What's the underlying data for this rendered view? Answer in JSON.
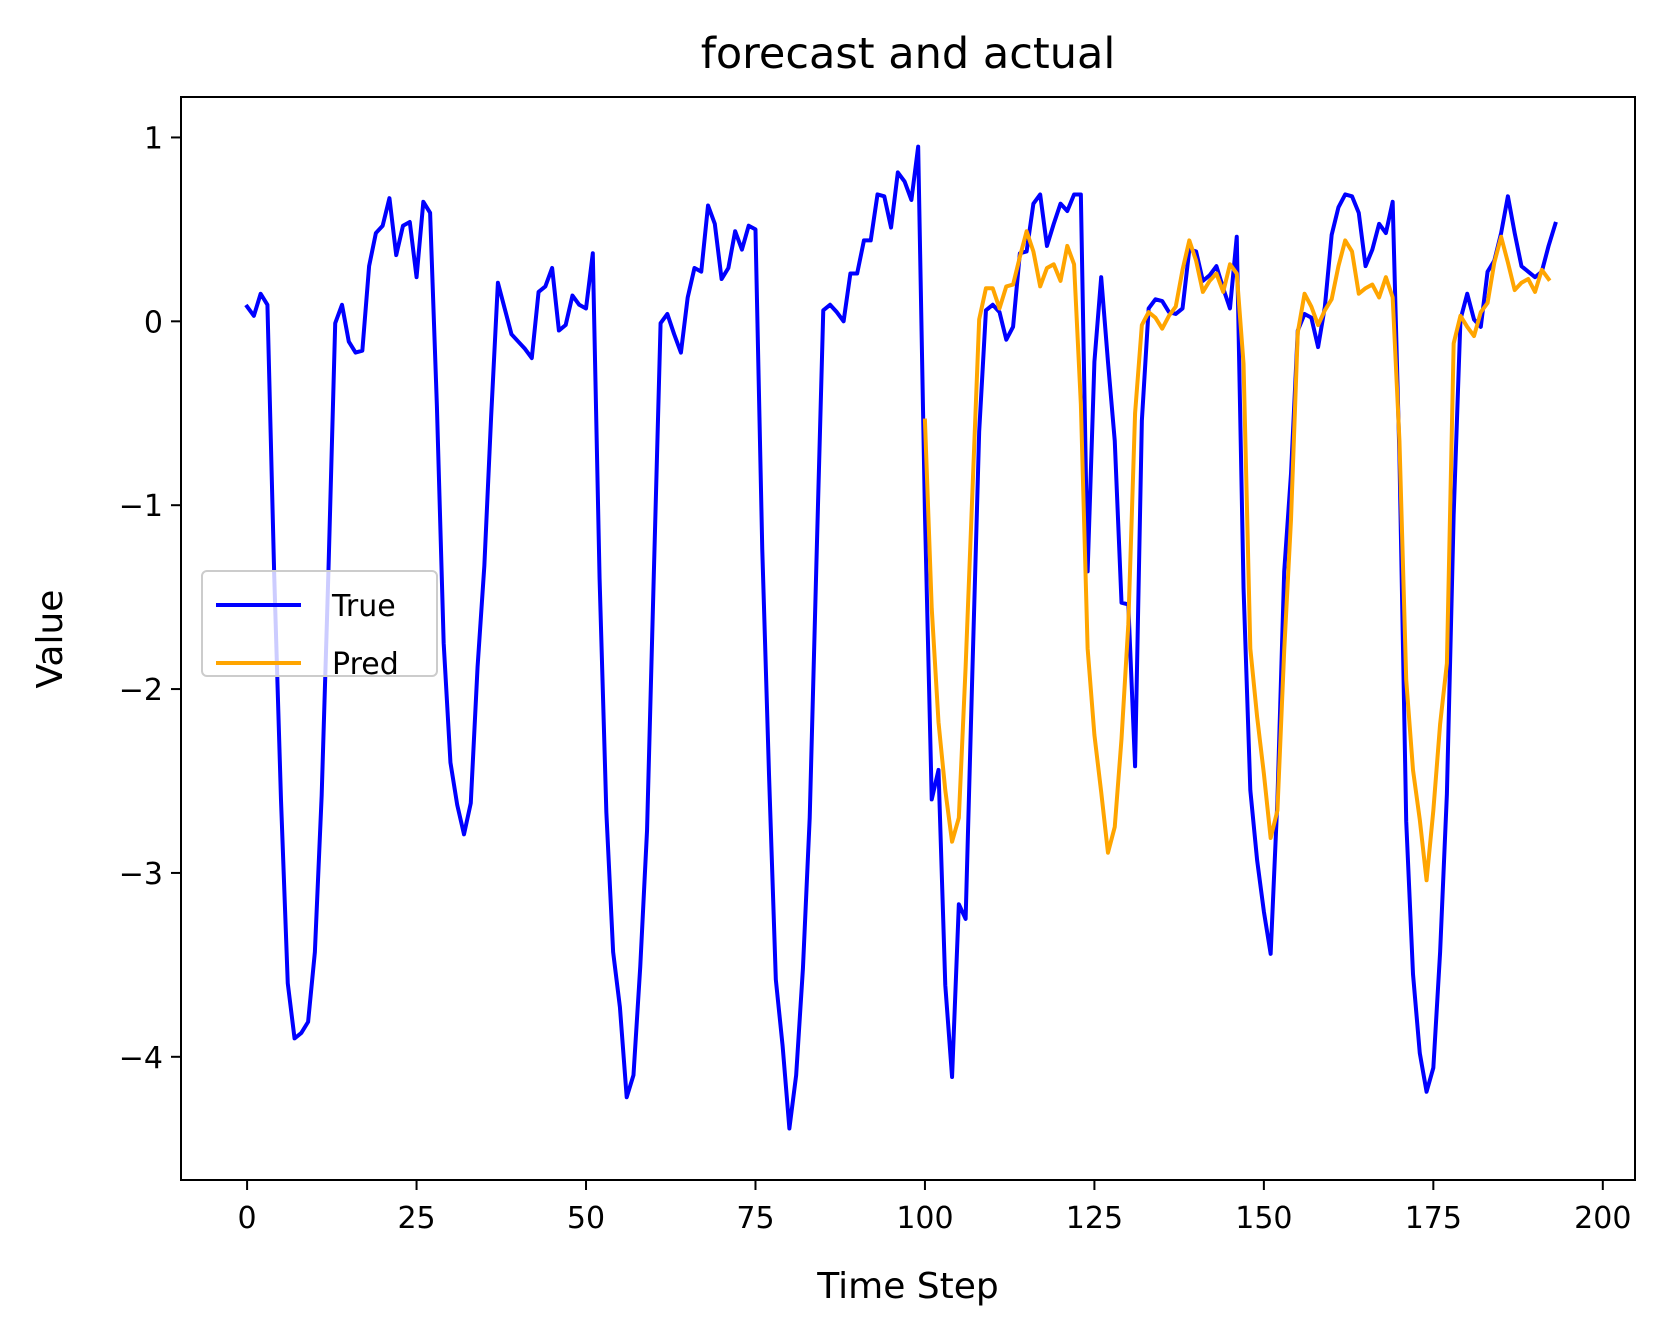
{
  "chart_data": {
    "type": "line",
    "title": "forecast and actual",
    "xlabel": "Time Step",
    "ylabel": "Value",
    "xlim": [
      -9.75,
      204.75
    ],
    "ylim": [
      -4.67,
      1.22
    ],
    "xticks": [
      0,
      25,
      50,
      75,
      100,
      125,
      150,
      175,
      200
    ],
    "xtick_labels": [
      "0",
      "25",
      "50",
      "75",
      "100",
      "125",
      "150",
      "175",
      "200"
    ],
    "yticks": [
      1,
      0,
      -1,
      -2,
      -3,
      -4
    ],
    "ytick_labels": [
      "1",
      "0",
      "−1",
      "−2",
      "−3",
      "−4"
    ],
    "grid": false,
    "legend_position": "center-left",
    "series": [
      {
        "name": "True",
        "color": "#0000ff",
        "x_start": 0,
        "values": [
          0.08,
          0.03,
          0.15,
          0.09,
          -1.38,
          -2.6,
          -3.6,
          -3.9,
          -3.87,
          -3.81,
          -3.43,
          -2.58,
          -1.36,
          -0.01,
          0.09,
          -0.11,
          -0.17,
          -0.16,
          0.3,
          0.48,
          0.52,
          0.67,
          0.36,
          0.52,
          0.54,
          0.24,
          0.65,
          0.59,
          -0.46,
          -1.75,
          -2.4,
          -2.63,
          -2.79,
          -2.62,
          -1.88,
          -1.33,
          -0.52,
          0.21,
          0.07,
          -0.07,
          -0.11,
          -0.15,
          -0.2,
          0.16,
          0.19,
          0.29,
          -0.05,
          -0.02,
          0.14,
          0.09,
          0.07,
          0.37,
          -1.4,
          -2.67,
          -3.43,
          -3.73,
          -4.22,
          -4.1,
          -3.51,
          -2.77,
          -1.38,
          -0.01,
          0.04,
          -0.07,
          -0.17,
          0.13,
          0.29,
          0.27,
          0.63,
          0.53,
          0.23,
          0.29,
          0.49,
          0.39,
          0.52,
          0.5,
          -1.24,
          -2.47,
          -3.58,
          -3.94,
          -4.39,
          -4.1,
          -3.52,
          -2.7,
          -1.3,
          0.06,
          0.09,
          0.05,
          0,
          0.26,
          0.26,
          0.44,
          0.44,
          0.69,
          0.68,
          0.51,
          0.81,
          0.76,
          0.66,
          0.95,
          -1.05,
          -2.6,
          -2.44,
          -3.61,
          -4.11,
          -3.17,
          -3.25,
          -1.9,
          -0.6,
          0.06,
          0.09,
          0.05,
          -0.1,
          -0.03,
          0.37,
          0.38,
          0.64,
          0.69,
          0.41,
          0.53,
          0.64,
          0.6,
          0.69,
          0.69,
          -1.36,
          -0.22,
          0.24,
          -0.22,
          -0.65,
          -1.53,
          -1.54,
          -2.42,
          -0.54,
          0.07,
          0.12,
          0.11,
          0.05,
          0.04,
          0.07,
          0.39,
          0.38,
          0.22,
          0.25,
          0.3,
          0.18,
          0.07,
          0.46,
          -1.45,
          -2.55,
          -2.93,
          -3.21,
          -3.44,
          -2.6,
          -1.36,
          -0.83,
          -0.05,
          0.04,
          0.02,
          -0.14,
          0.08,
          0.47,
          0.62,
          0.69,
          0.68,
          0.59,
          0.3,
          0.39,
          0.53,
          0.48,
          0.65,
          -0.74,
          -2.72,
          -3.55,
          -3.98,
          -4.19,
          -4.06,
          -3.43,
          -2.57,
          -1.05,
          0.01,
          0.15,
          0.01,
          -0.03,
          0.27,
          0.33,
          0.48,
          0.68,
          0.48,
          0.3,
          0.27,
          0.24,
          0.27,
          0.41,
          0.53
        ]
      },
      {
        "name": "Pred",
        "color": "#ffa500",
        "x_start": 100,
        "values": [
          -0.54,
          -1.56,
          -2.18,
          -2.55,
          -2.83,
          -2.7,
          -1.88,
          -0.93,
          0.01,
          0.18,
          0.18,
          0.07,
          0.19,
          0.2,
          0.35,
          0.49,
          0.38,
          0.19,
          0.29,
          0.31,
          0.22,
          0.41,
          0.31,
          -0.45,
          -1.78,
          -2.25,
          -2.56,
          -2.89,
          -2.75,
          -2.27,
          -1.65,
          -0.5,
          -0.02,
          0.05,
          0.02,
          -0.04,
          0.03,
          0.08,
          0.28,
          0.44,
          0.33,
          0.16,
          0.22,
          0.26,
          0.16,
          0.31,
          0.26,
          -0.23,
          -1.78,
          -2.15,
          -2.46,
          -2.81,
          -2.66,
          -1.79,
          -1.08,
          -0.06,
          0.15,
          0.08,
          -0.02,
          0.06,
          0.12,
          0.3,
          0.44,
          0.38,
          0.15,
          0.18,
          0.2,
          0.13,
          0.24,
          0.13,
          -0.65,
          -1.95,
          -2.44,
          -2.71,
          -3.04,
          -2.66,
          -2.19,
          -1.86,
          -0.12,
          0.03,
          -0.03,
          -0.08,
          0.05,
          0.1,
          0.32,
          0.46,
          0.32,
          0.17,
          0.21,
          0.23,
          0.16,
          0.28,
          0.23
        ]
      }
    ]
  }
}
